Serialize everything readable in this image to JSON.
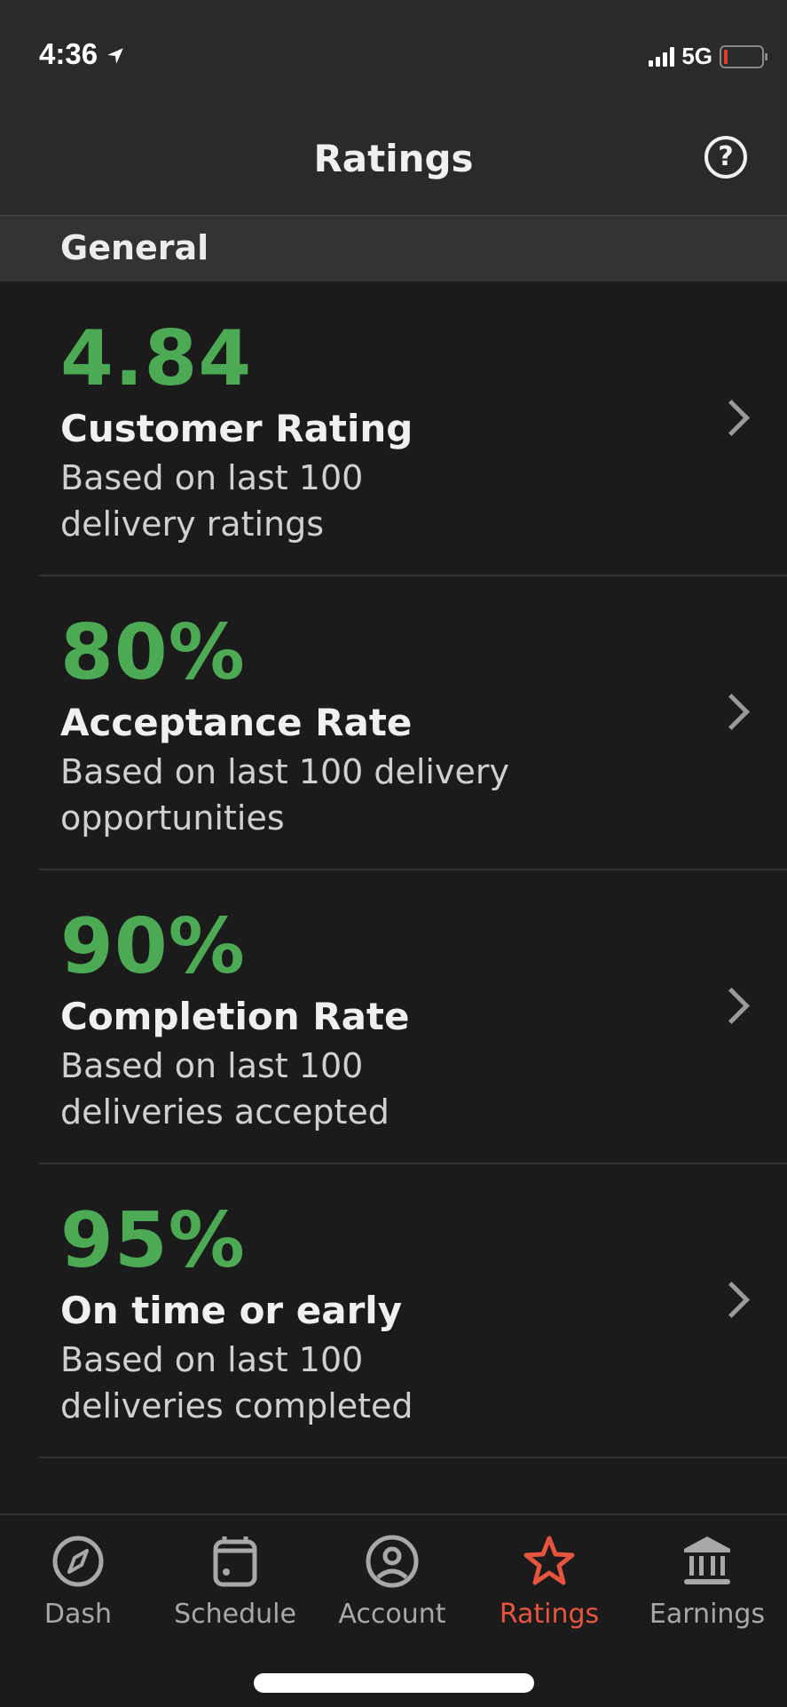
{
  "status_bar": {
    "time": "4:36",
    "network": "5G",
    "battery_level": "low",
    "location_icon": "location-arrow-icon"
  },
  "header": {
    "title": "Ratings",
    "help_icon": "question-circle-icon",
    "help_label": "?"
  },
  "section": {
    "title": "General"
  },
  "metrics": [
    {
      "value": "4.84",
      "label": "Customer Rating",
      "sub": "Based on last 100 delivery ratings"
    },
    {
      "value": "80%",
      "label": "Acceptance Rate",
      "sub": "Based on last 100 delivery opportunities"
    },
    {
      "value": "90%",
      "label": "Completion Rate",
      "sub": "Based on last 100 deliveries accepted"
    },
    {
      "value": "95%",
      "label": "On time or early",
      "sub": "Based on last 100 deliveries completed"
    }
  ],
  "tabs": [
    {
      "label": "Dash",
      "icon": "compass-icon"
    },
    {
      "label": "Schedule",
      "icon": "calendar-icon"
    },
    {
      "label": "Account",
      "icon": "account-icon"
    },
    {
      "label": "Ratings",
      "icon": "star-icon",
      "active": true
    },
    {
      "label": "Earnings",
      "icon": "bank-icon"
    }
  ],
  "colors": {
    "accent_green": "#4caa55",
    "active_tab": "#e8553e",
    "background": "#1b1b1b",
    "header": "#2a2a2a"
  }
}
